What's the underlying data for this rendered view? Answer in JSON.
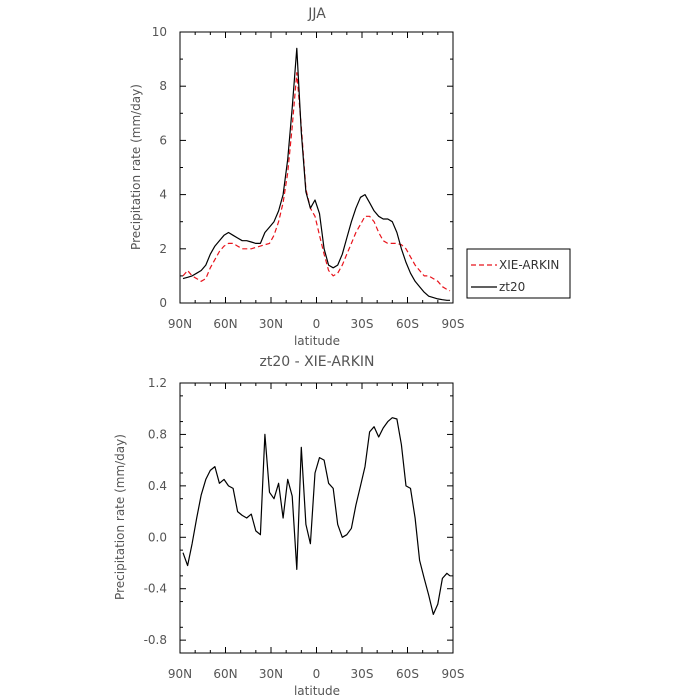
{
  "chart_data": [
    {
      "type": "line",
      "title": "JJA",
      "xlabel": "latitude",
      "ylabel": "Precipitation rate (mm/day)",
      "xlim": [
        90,
        -90
      ],
      "ylim": [
        0,
        10
      ],
      "xticks": [
        90,
        60,
        30,
        0,
        -30,
        -60,
        -90
      ],
      "xtick_labels": [
        "90N",
        "60N",
        "30N",
        "0",
        "30S",
        "60S",
        "90S"
      ],
      "yticks": [
        0,
        2,
        4,
        6,
        8,
        10
      ],
      "ytick_labels": [
        "0",
        "2",
        "4",
        "6",
        "8",
        "10"
      ],
      "legend_position": "outside-right",
      "series": [
        {
          "name": "XIE-ARKIN",
          "color": "#e8141c",
          "dash": "dashed",
          "x": [
            88,
            85,
            82,
            79,
            76,
            73,
            70,
            67,
            64,
            61,
            58,
            55,
            52,
            49,
            46,
            43,
            40,
            37,
            34,
            31,
            28,
            25,
            22,
            19,
            16,
            13,
            10,
            7,
            4,
            1,
            -2,
            -5,
            -8,
            -11,
            -14,
            -17,
            -20,
            -23,
            -26,
            -29,
            -32,
            -35,
            -38,
            -41,
            -44,
            -47,
            -50,
            -53,
            -56,
            -59,
            -62,
            -65,
            -68,
            -71,
            -74,
            -77,
            -80,
            -83,
            -86,
            -88
          ],
          "y": [
            1.0,
            1.2,
            1.0,
            0.9,
            0.8,
            0.9,
            1.3,
            1.6,
            1.9,
            2.1,
            2.2,
            2.2,
            2.1,
            2.0,
            2.0,
            2.0,
            2.05,
            2.1,
            2.15,
            2.2,
            2.5,
            3.0,
            3.7,
            4.8,
            6.5,
            8.5,
            6.5,
            4.2,
            3.5,
            3.2,
            2.5,
            1.8,
            1.2,
            1.0,
            1.1,
            1.4,
            1.8,
            2.2,
            2.6,
            2.9,
            3.2,
            3.2,
            3.0,
            2.6,
            2.3,
            2.2,
            2.2,
            2.2,
            2.15,
            2.0,
            1.7,
            1.4,
            1.2,
            1.0,
            1.0,
            0.9,
            0.8,
            0.6,
            0.5,
            0.45
          ]
        },
        {
          "name": "zt20",
          "color": "#000000",
          "dash": "solid",
          "x": [
            88,
            85,
            82,
            79,
            76,
            73,
            70,
            67,
            64,
            61,
            58,
            55,
            52,
            49,
            46,
            43,
            40,
            37,
            34,
            31,
            28,
            25,
            22,
            19,
            16,
            13,
            10,
            7,
            4,
            1,
            -2,
            -5,
            -8,
            -11,
            -14,
            -17,
            -20,
            -23,
            -26,
            -29,
            -32,
            -35,
            -38,
            -41,
            -44,
            -47,
            -50,
            -53,
            -56,
            -59,
            -62,
            -65,
            -68,
            -71,
            -74,
            -77,
            -80,
            -83,
            -86,
            -88
          ],
          "y": [
            0.9,
            0.95,
            1.0,
            1.1,
            1.2,
            1.4,
            1.8,
            2.1,
            2.3,
            2.5,
            2.6,
            2.5,
            2.4,
            2.3,
            2.3,
            2.25,
            2.2,
            2.2,
            2.6,
            2.8,
            3.0,
            3.4,
            4.0,
            5.3,
            7.2,
            9.4,
            6.3,
            4.1,
            3.5,
            3.8,
            3.3,
            2.0,
            1.4,
            1.3,
            1.4,
            1.8,
            2.4,
            3.0,
            3.5,
            3.9,
            4.0,
            3.7,
            3.4,
            3.2,
            3.1,
            3.1,
            3.0,
            2.6,
            2.0,
            1.5,
            1.1,
            0.8,
            0.6,
            0.4,
            0.25,
            0.2,
            0.15,
            0.12,
            0.1,
            0.1
          ]
        }
      ]
    },
    {
      "type": "line",
      "title": "zt20 - XIE-ARKIN",
      "xlabel": "latitude",
      "ylabel": "Precipitation rate (mm/day)",
      "xlim": [
        90,
        -90
      ],
      "ylim": [
        -0.9,
        1.2
      ],
      "xticks": [
        90,
        60,
        30,
        0,
        -30,
        -60,
        -90
      ],
      "xtick_labels": [
        "90N",
        "60N",
        "30N",
        "0",
        "30S",
        "60S",
        "90S"
      ],
      "yticks": [
        1.2,
        0.8,
        0.4,
        0.0,
        -0.4,
        -0.8
      ],
      "ytick_labels": [
        "1.2",
        "0.8",
        "0.4",
        "0.0",
        "-0.4",
        "-0.8"
      ],
      "series": [
        {
          "color": "#000000",
          "dash": "solid",
          "x": [
            88,
            85,
            82,
            79,
            76,
            73,
            70,
            67,
            64,
            61,
            58,
            55,
            52,
            49,
            46,
            43,
            40,
            37,
            34,
            31,
            28,
            25,
            22,
            19,
            16,
            13,
            10,
            7,
            4,
            1,
            -2,
            -5,
            -8,
            -11,
            -14,
            -17,
            -20,
            -23,
            -26,
            -29,
            -32,
            -35,
            -38,
            -41,
            -44,
            -47,
            -50,
            -53,
            -56,
            -59,
            -62,
            -65,
            -68,
            -71,
            -74,
            -77,
            -80,
            -83,
            -86,
            -88
          ],
          "y": [
            -0.12,
            -0.22,
            -0.05,
            0.15,
            0.33,
            0.45,
            0.52,
            0.55,
            0.42,
            0.45,
            0.4,
            0.38,
            0.2,
            0.17,
            0.15,
            0.18,
            0.05,
            0.02,
            0.8,
            0.35,
            0.3,
            0.42,
            0.15,
            0.45,
            0.32,
            -0.25,
            0.7,
            0.1,
            -0.05,
            0.5,
            0.62,
            0.6,
            0.42,
            0.38,
            0.1,
            0.0,
            0.02,
            0.07,
            0.25,
            0.4,
            0.55,
            0.82,
            0.86,
            0.78,
            0.85,
            0.9,
            0.93,
            0.92,
            0.72,
            0.4,
            0.38,
            0.15,
            -0.18,
            -0.32,
            -0.45,
            -0.6,
            -0.52,
            -0.32,
            -0.28,
            -0.3
          ]
        }
      ]
    }
  ]
}
